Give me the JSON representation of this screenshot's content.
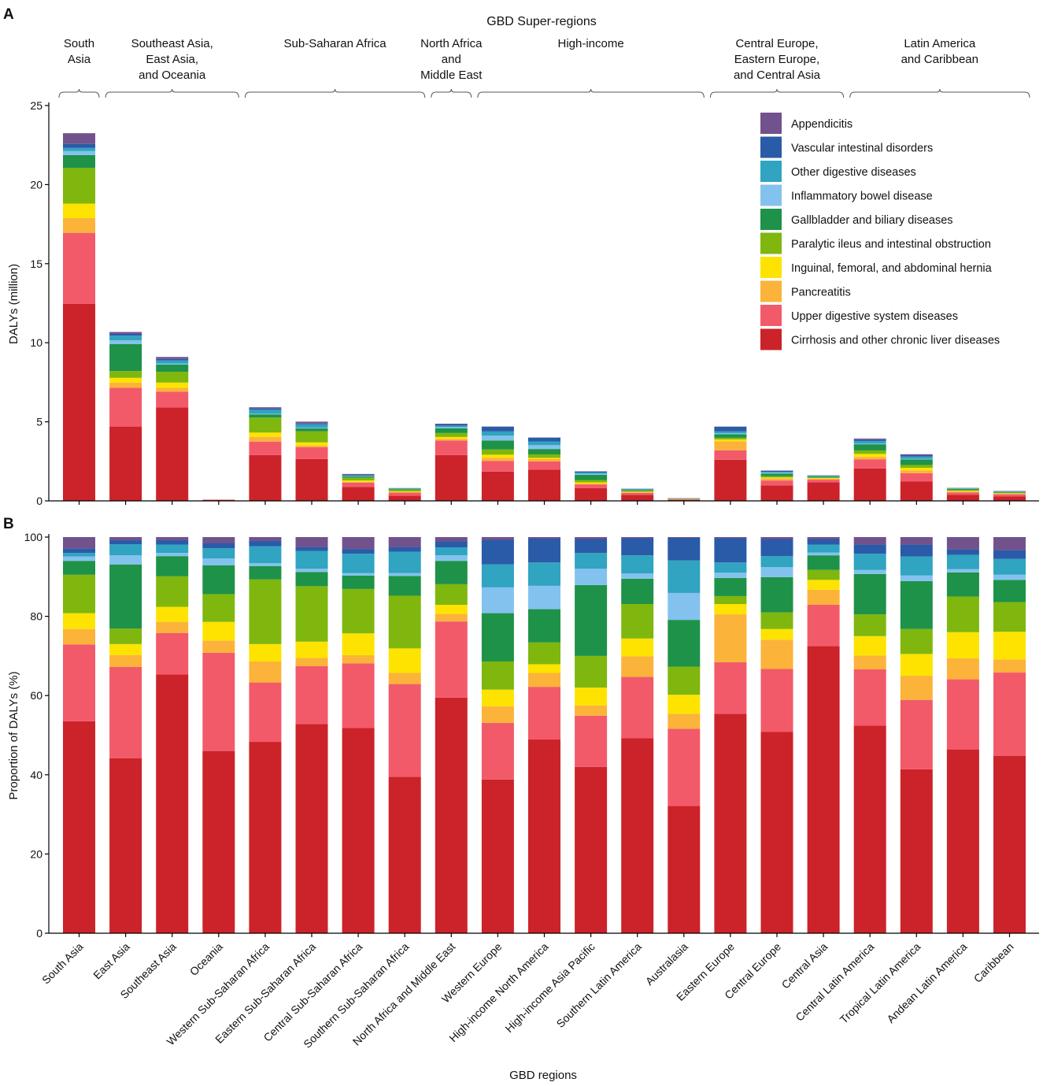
{
  "chart_data": [
    {
      "panel": "A",
      "type": "bar",
      "stacked": true,
      "title": "GBD Super-regions",
      "xlabel": "",
      "ylabel": "DALYs (million)",
      "ylim": [
        0,
        25
      ],
      "yticks": [
        0,
        5,
        10,
        15,
        20,
        25
      ],
      "grid": false,
      "legend_position": "top-right",
      "super_regions": [
        {
          "name": "South Asia",
          "lines": [
            "South",
            "Asia"
          ],
          "from": 0,
          "to": 0
        },
        {
          "name": "Southeast Asia, East Asia, and Oceania",
          "lines": [
            "Southeast Asia,",
            "East Asia,",
            "and Oceania"
          ],
          "from": 1,
          "to": 3
        },
        {
          "name": "Sub-Saharan Africa",
          "lines": [
            "Sub-Saharan Africa"
          ],
          "from": 4,
          "to": 7
        },
        {
          "name": "North Africa and Middle East",
          "lines": [
            "North Africa",
            "and",
            "Middle East"
          ],
          "from": 8,
          "to": 8
        },
        {
          "name": "High-income",
          "lines": [
            "High-income"
          ],
          "from": 9,
          "to": 13
        },
        {
          "name": "Central Europe, Eastern Europe, and Central Asia",
          "lines": [
            "Central Europe,",
            "Eastern Europe,",
            "and Central Asia"
          ],
          "from": 14,
          "to": 16
        },
        {
          "name": "Latin America and Caribbean",
          "lines": [
            "Latin America",
            "and Caribbean"
          ],
          "from": 17,
          "to": 20
        }
      ],
      "categories": [
        "South Asia",
        "East Asia",
        "Southeast Asia",
        "Oceania",
        "Western Sub-Saharan Africa",
        "Eastern Sub-Saharan Africa",
        "Central Sub-Saharan Africa",
        "Southern Sub-Saharan Africa",
        "North Africa and Middle East",
        "Western Europe",
        "High-income North America",
        "High-income Asia Pacific",
        "Southern Latin America",
        "Australasia",
        "Eastern Europe",
        "Central Europe",
        "Central Asia",
        "Central Latin America",
        "Tropical Latin America",
        "Andean Latin America",
        "Caribbean"
      ],
      "series": [
        {
          "name": "Cirrhosis and other chronic liver diseases",
          "color": "#CC2229",
          "values": [
            12.45,
            4.7,
            5.9,
            0.05,
            2.9,
            2.65,
            0.88,
            0.32,
            2.9,
            1.85,
            1.98,
            0.8,
            0.38,
            0.06,
            2.6,
            0.98,
            1.18,
            2.05,
            1.22,
            0.39,
            0.29
          ]
        },
        {
          "name": "Upper digestive system diseases",
          "color": "#F25A6A",
          "values": [
            4.5,
            2.45,
            1.0,
            0.03,
            0.85,
            0.75,
            0.28,
            0.2,
            0.92,
            0.68,
            0.52,
            0.24,
            0.12,
            0.04,
            0.6,
            0.31,
            0.16,
            0.58,
            0.53,
            0.15,
            0.13
          ]
        },
        {
          "name": "Pancreatitis",
          "color": "#FBB33A",
          "values": [
            0.93,
            0.33,
            0.25,
            0.0,
            0.3,
            0.1,
            0.04,
            0.03,
            0.1,
            0.19,
            0.14,
            0.05,
            0.04,
            0.01,
            0.57,
            0.14,
            0.06,
            0.15,
            0.18,
            0.04,
            0.02
          ]
        },
        {
          "name": "Inguinal, femoral, and abdominal hernia",
          "color": "#FEE300",
          "values": [
            0.92,
            0.3,
            0.33,
            0.0,
            0.27,
            0.2,
            0.09,
            0.05,
            0.12,
            0.2,
            0.08,
            0.08,
            0.03,
            0.01,
            0.12,
            0.05,
            0.04,
            0.19,
            0.16,
            0.05,
            0.04
          ]
        },
        {
          "name": "Paralytic ileus and intestinal obstruction",
          "color": "#7FB70F",
          "values": [
            2.25,
            0.43,
            0.68,
            0.0,
            0.95,
            0.7,
            0.18,
            0.11,
            0.25,
            0.33,
            0.22,
            0.15,
            0.07,
            0.01,
            0.1,
            0.08,
            0.04,
            0.22,
            0.18,
            0.07,
            0.04
          ]
        },
        {
          "name": "Gallbladder and biliary diseases",
          "color": "#1E9248",
          "values": [
            0.82,
            1.7,
            0.46,
            0.0,
            0.2,
            0.18,
            0.06,
            0.04,
            0.3,
            0.57,
            0.34,
            0.33,
            0.05,
            0.02,
            0.22,
            0.17,
            0.06,
            0.39,
            0.35,
            0.05,
            0.03
          ]
        },
        {
          "name": "Inflammatory bowel disease",
          "color": "#83C2EE",
          "values": [
            0.25,
            0.24,
            0.07,
            0.0,
            0.04,
            0.04,
            0.01,
            0.0,
            0.07,
            0.3,
            0.24,
            0.07,
            0.01,
            0.01,
            0.06,
            0.05,
            0.01,
            0.04,
            0.04,
            0.01,
            0.01
          ]
        },
        {
          "name": "Other digestive diseases",
          "color": "#30A4C0",
          "values": [
            0.2,
            0.3,
            0.19,
            0.0,
            0.25,
            0.22,
            0.08,
            0.04,
            0.1,
            0.27,
            0.24,
            0.07,
            0.03,
            0.01,
            0.12,
            0.05,
            0.04,
            0.16,
            0.14,
            0.03,
            0.03
          ]
        },
        {
          "name": "Vascular intestinal disorders",
          "color": "#2A5BA8",
          "values": [
            0.25,
            0.11,
            0.1,
            0.0,
            0.08,
            0.05,
            0.02,
            0.01,
            0.07,
            0.29,
            0.24,
            0.07,
            0.03,
            0.01,
            0.3,
            0.08,
            0.02,
            0.09,
            0.09,
            0.01,
            0.02
          ]
        },
        {
          "name": "Appendicitis",
          "color": "#72528C",
          "values": [
            0.68,
            0.12,
            0.12,
            0.0,
            0.08,
            0.12,
            0.06,
            0.01,
            0.05,
            0.02,
            0.01,
            0.01,
            0.01,
            0.0,
            0.01,
            0.01,
            0.01,
            0.07,
            0.06,
            0.02,
            0.02
          ]
        }
      ]
    },
    {
      "panel": "B",
      "type": "bar",
      "stacked": true,
      "title": "",
      "xlabel": "GBD regions",
      "ylabel": "Proportion of DALYs (%)",
      "ylim": [
        0,
        100
      ],
      "yticks": [
        0,
        20,
        40,
        60,
        80,
        100
      ],
      "grid": false,
      "categories": [
        "South Asia",
        "East Asia",
        "Southeast Asia",
        "Oceania",
        "Western Sub-Saharan Africa",
        "Eastern Sub-Saharan Africa",
        "Central Sub-Saharan Africa",
        "Southern Sub-Saharan Africa",
        "North Africa and Middle East",
        "Western Europe",
        "High-income North America",
        "High-income Asia Pacific",
        "Southern Latin America",
        "Australasia",
        "Eastern Europe",
        "Central Europe",
        "Central Asia",
        "Central Latin America",
        "Tropical Latin America",
        "Andean Latin America",
        "Caribbean"
      ],
      "series": [
        {
          "name": "Cirrhosis and other chronic liver diseases",
          "color": "#CC2229",
          "values": [
            53.5,
            44.2,
            65.3,
            46.0,
            48.3,
            52.8,
            51.8,
            39.5,
            59.5,
            38.8,
            48.9,
            42.0,
            49.2,
            32.1,
            55.4,
            50.8,
            72.5,
            52.4,
            41.4,
            46.4,
            44.8
          ]
        },
        {
          "name": "Upper digestive system diseases",
          "color": "#F25A6A",
          "values": [
            19.4,
            23.0,
            10.5,
            24.8,
            15.0,
            14.6,
            16.3,
            23.4,
            19.2,
            14.3,
            13.3,
            12.9,
            15.5,
            19.5,
            13.0,
            15.9,
            10.4,
            14.2,
            17.5,
            17.7,
            21.0
          ]
        },
        {
          "name": "Pancreatitis",
          "color": "#FBB33A",
          "values": [
            3.9,
            3.0,
            2.8,
            3.1,
            5.3,
            2.1,
            2.1,
            2.8,
            1.9,
            4.2,
            3.5,
            2.6,
            5.2,
            3.8,
            12.1,
            7.4,
            3.8,
            3.5,
            6.1,
            5.3,
            3.3
          ]
        },
        {
          "name": "Inguinal, femoral, and abdominal hernia",
          "color": "#FEE300",
          "values": [
            4.0,
            2.8,
            3.8,
            4.7,
            4.4,
            4.1,
            5.5,
            6.2,
            2.3,
            4.2,
            2.2,
            4.5,
            4.5,
            4.8,
            2.6,
            2.7,
            2.5,
            4.9,
            5.5,
            6.6,
            7.0
          ]
        },
        {
          "name": "Paralytic ileus and intestinal obstruction",
          "color": "#7FB70F",
          "values": [
            9.7,
            3.9,
            7.7,
            7.0,
            16.3,
            14.0,
            11.2,
            13.3,
            5.2,
            7.1,
            5.5,
            8.0,
            8.7,
            7.1,
            2.0,
            4.2,
            2.5,
            5.5,
            6.3,
            9.0,
            7.5
          ]
        },
        {
          "name": "Gallbladder and biliary diseases",
          "color": "#1E9248",
          "values": [
            3.5,
            16.2,
            5.1,
            7.3,
            3.4,
            3.6,
            3.4,
            5.0,
            5.9,
            12.2,
            8.4,
            17.9,
            6.4,
            11.8,
            4.6,
            8.9,
            3.7,
            10.2,
            12.1,
            6.1,
            5.6
          ]
        },
        {
          "name": "Inflammatory bowel disease",
          "color": "#83C2EE",
          "values": [
            1.1,
            2.3,
            0.8,
            1.7,
            0.7,
            0.8,
            0.6,
            0.7,
            1.4,
            6.5,
            5.9,
            4.1,
            1.3,
            6.8,
            1.3,
            2.5,
            0.7,
            1.0,
            1.4,
            0.8,
            1.3
          ]
        },
        {
          "name": "Other digestive diseases",
          "color": "#30A4C0",
          "values": [
            0.9,
            2.8,
            2.1,
            2.6,
            4.3,
            4.5,
            4.9,
            5.4,
            2.0,
            5.8,
            5.9,
            4.0,
            4.6,
            8.2,
            2.6,
            2.8,
            2.0,
            4.1,
            4.8,
            3.6,
            4.0
          ]
        },
        {
          "name": "Vascular intestinal disorders",
          "color": "#2A5BA8",
          "values": [
            1.1,
            1.0,
            1.1,
            1.3,
            1.3,
            1.0,
            1.2,
            1.2,
            1.5,
            6.2,
            6.0,
            3.5,
            4.3,
            5.7,
            6.1,
            4.3,
            1.4,
            2.3,
            3.0,
            1.4,
            2.2
          ]
        },
        {
          "name": "Appendicitis",
          "color": "#72528C",
          "values": [
            2.9,
            0.8,
            0.8,
            1.5,
            1.0,
            2.5,
            3.0,
            2.5,
            1.1,
            0.7,
            0.4,
            0.5,
            0.3,
            0.2,
            0.3,
            0.5,
            0.5,
            1.9,
            1.9,
            3.1,
            3.3
          ]
        }
      ]
    }
  ],
  "legend": {
    "items": [
      {
        "label": "Appendicitis",
        "color": "#72528C"
      },
      {
        "label": "Vascular intestinal disorders",
        "color": "#2A5BA8"
      },
      {
        "label": "Other digestive diseases",
        "color": "#30A4C0"
      },
      {
        "label": "Inflammatory bowel disease",
        "color": "#83C2EE"
      },
      {
        "label": "Gallbladder and biliary diseases",
        "color": "#1E9248"
      },
      {
        "label": "Paralytic ileus and intestinal obstruction",
        "color": "#7FB70F"
      },
      {
        "label": "Inguinal, femoral, and abdominal hernia",
        "color": "#FEE300"
      },
      {
        "label": "Pancreatitis",
        "color": "#FBB33A"
      },
      {
        "label": "Upper digestive system diseases",
        "color": "#F25A6A"
      },
      {
        "label": "Cirrhosis and other chronic liver diseases",
        "color": "#CC2229"
      }
    ]
  },
  "panels": {
    "a_label": "A",
    "b_label": "B"
  }
}
